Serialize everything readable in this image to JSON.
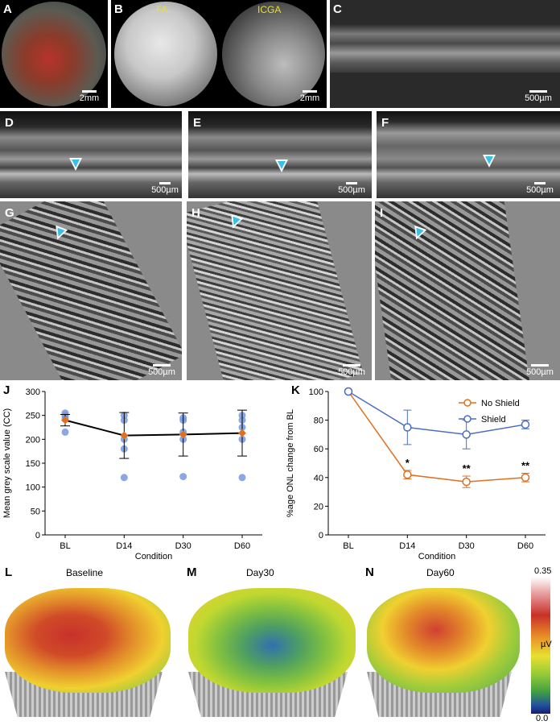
{
  "panels": {
    "A": {
      "letter": "A",
      "scale": "2mm"
    },
    "B": {
      "letter": "B",
      "scale": "2mm",
      "label_fa": "FA",
      "label_icga": "ICGA"
    },
    "C": {
      "letter": "C",
      "scale": "500µm"
    },
    "D": {
      "letter": "D",
      "scale": "500µm"
    },
    "E": {
      "letter": "E",
      "scale": "500µm"
    },
    "F": {
      "letter": "F",
      "scale": "500µm"
    },
    "G": {
      "letter": "G",
      "scale": "500µm"
    },
    "H": {
      "letter": "H",
      "scale": "500µm"
    },
    "I": {
      "letter": "I",
      "scale": "500µm"
    },
    "J": {
      "letter": "J"
    },
    "K": {
      "letter": "K"
    },
    "L": {
      "letter": "L",
      "title": "Baseline"
    },
    "M": {
      "letter": "M",
      "title": "Day30"
    },
    "N": {
      "letter": "N",
      "title": "Day60"
    }
  },
  "colorbar": {
    "max": "0.35",
    "min": "0.0",
    "unit": "µV"
  },
  "chart_data": [
    {
      "type": "scatter",
      "panel": "J",
      "title": "",
      "xlabel": "Condition",
      "ylabel": "Mean grey scale value (CC)",
      "categories": [
        "BL",
        "D14",
        "D30",
        "D60"
      ],
      "ylim": [
        0,
        300
      ],
      "yticks": [
        0,
        50,
        100,
        150,
        200,
        250,
        300
      ],
      "series": [
        {
          "values": [
            240,
            208,
            210,
            213
          ],
          "err": [
            12,
            48,
            45,
            48
          ],
          "points": [
            [
              215,
              245,
              250,
              255
            ],
            [
              120,
              180,
              200,
              240,
              250
            ],
            [
              122,
              200,
              215,
              240,
              245
            ],
            [
              120,
              200,
              225,
              240,
              250
            ]
          ]
        }
      ],
      "colors": {
        "line": "#000000",
        "mean": "#e07020",
        "points": "#7799dd"
      }
    },
    {
      "type": "line",
      "panel": "K",
      "title": "",
      "xlabel": "Condition",
      "ylabel": "%age ONL change from BL",
      "categories": [
        "BL",
        "D14",
        "D30",
        "D60"
      ],
      "ylim": [
        0,
        100
      ],
      "yticks": [
        0,
        20,
        40,
        60,
        80,
        100
      ],
      "series": [
        {
          "name": "No Shield",
          "values": [
            100,
            42,
            37,
            40
          ],
          "err": [
            0,
            3,
            4,
            3
          ],
          "color": "#e07020"
        },
        {
          "name": "Shield",
          "values": [
            100,
            75,
            70,
            77
          ],
          "err": [
            0,
            12,
            10,
            3
          ],
          "color": "#4a6fc0"
        }
      ],
      "annotations": [
        {
          "category": "D14",
          "text": "*"
        },
        {
          "category": "D30",
          "text": "**"
        },
        {
          "category": "D60",
          "text": "**"
        }
      ],
      "legend": "top-right"
    }
  ]
}
